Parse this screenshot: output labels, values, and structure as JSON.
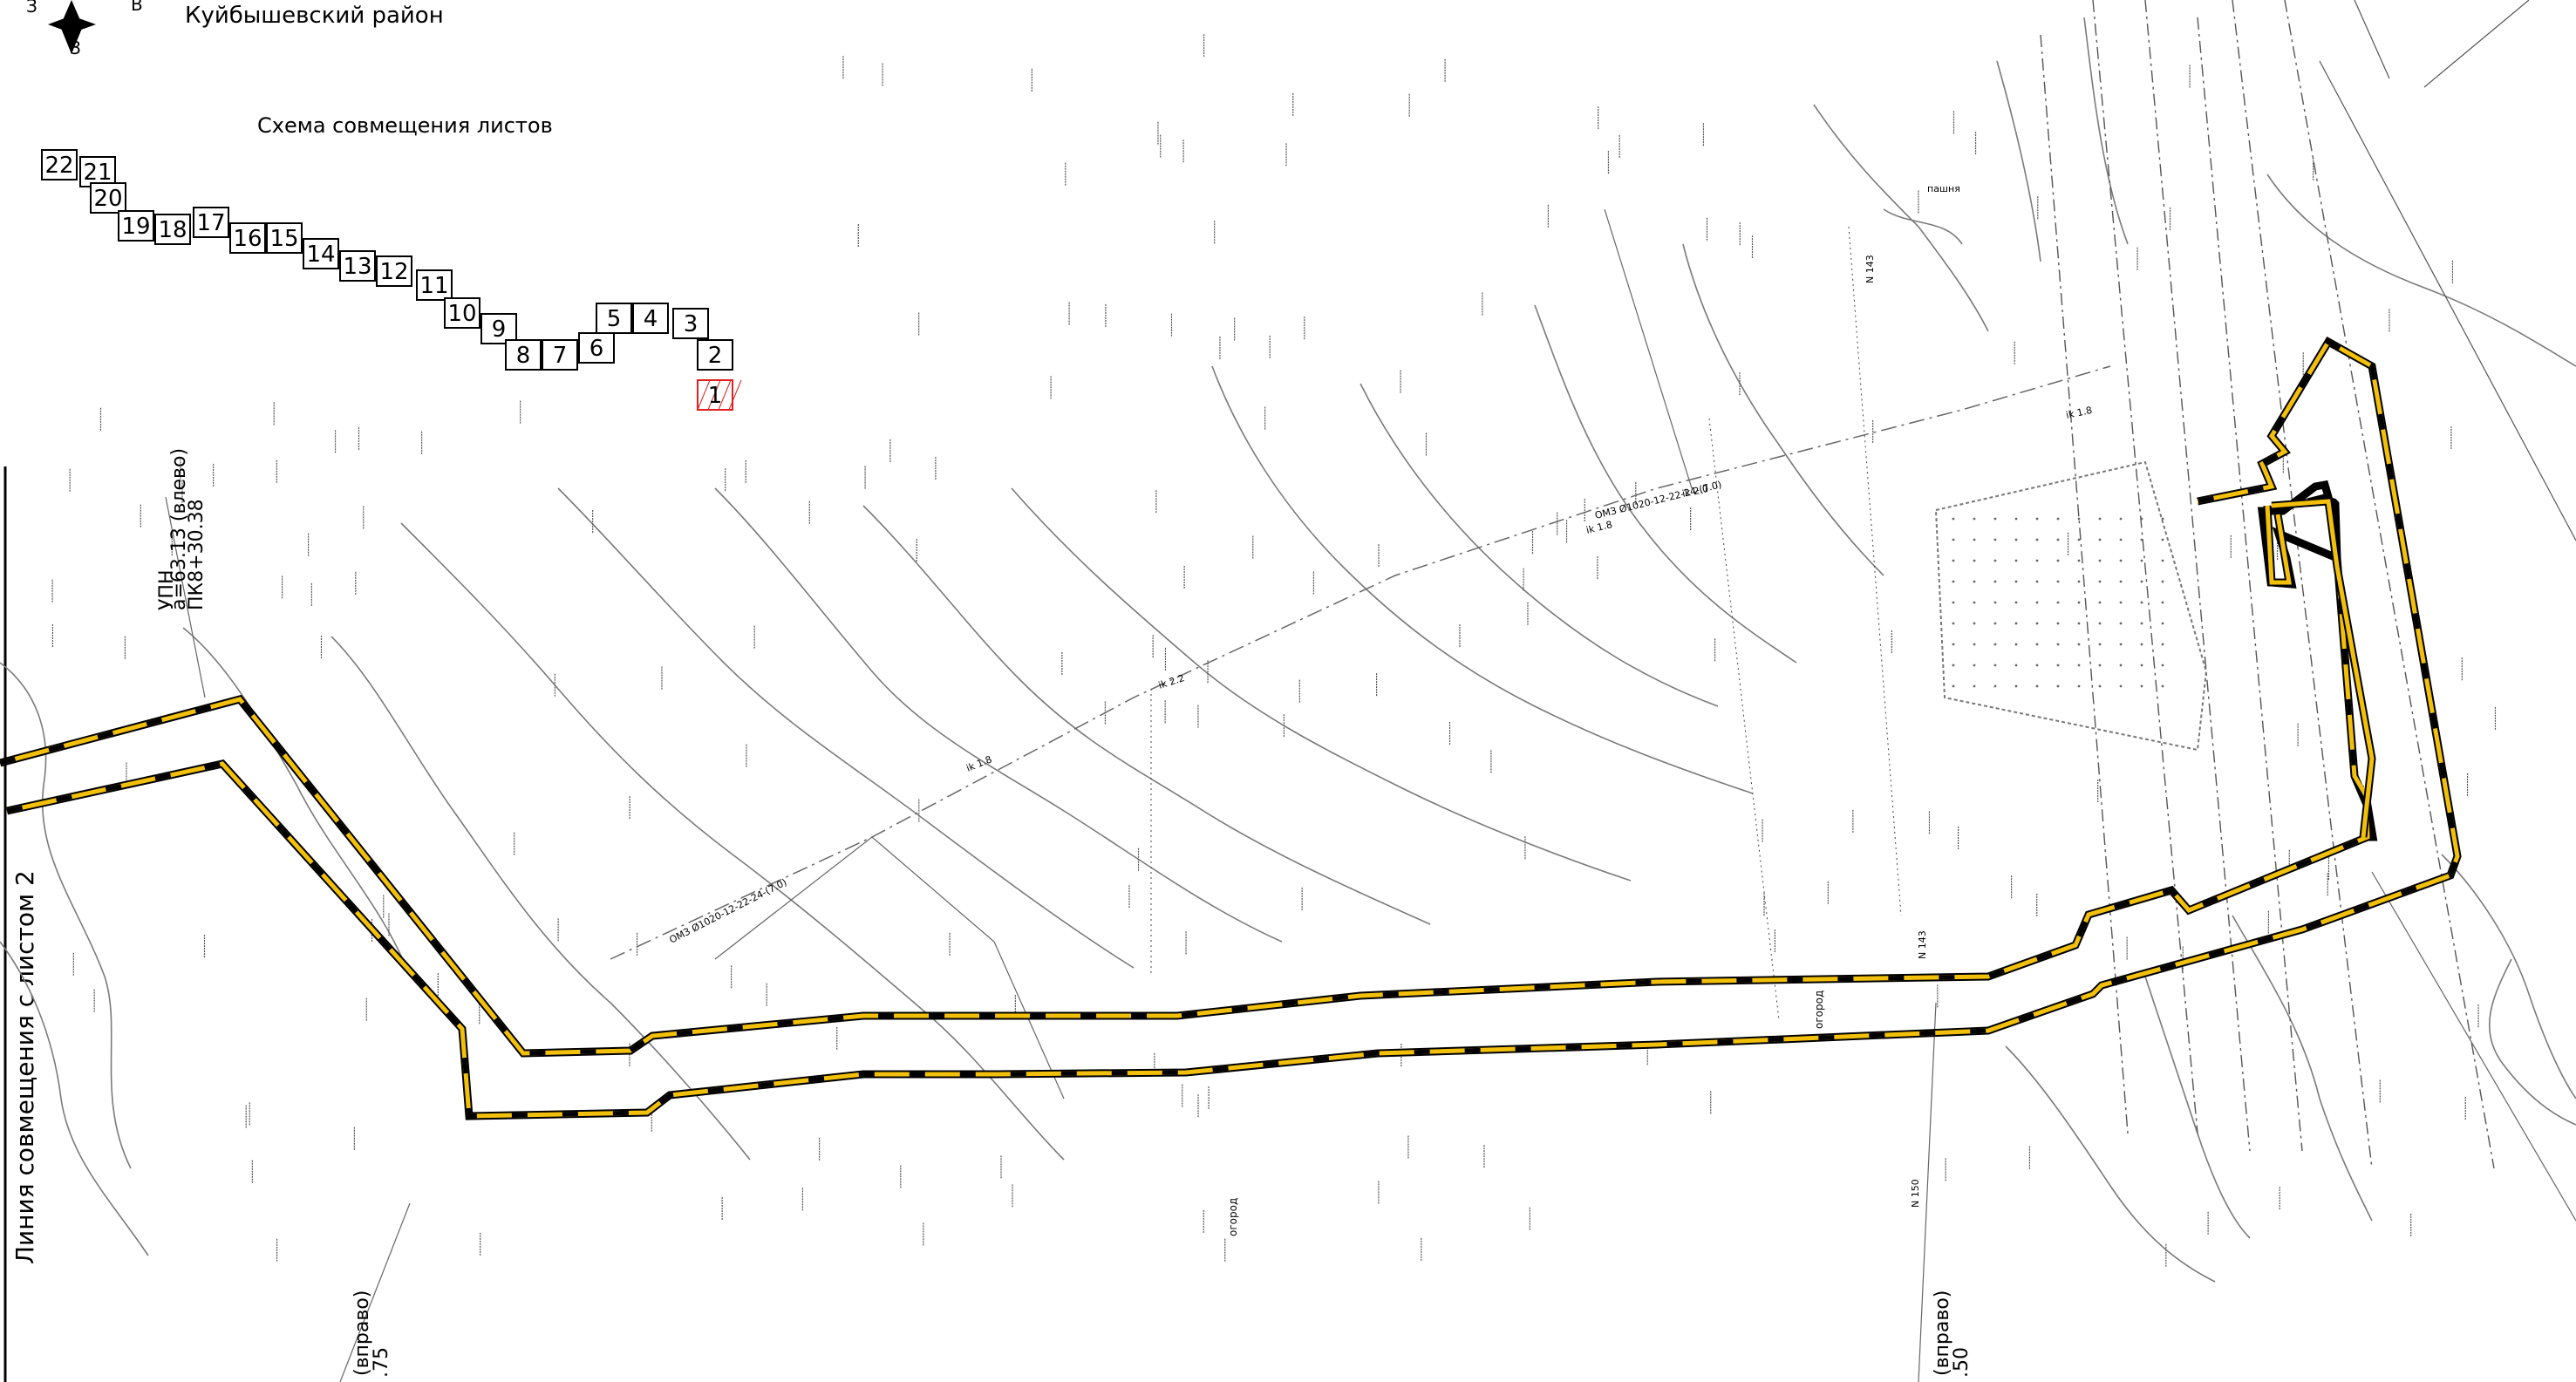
{
  "district": "Куйбышевский район",
  "compass": {
    "letter_left": "З",
    "letter_right": "В",
    "letter_bottom": "З"
  },
  "scheme_title": "Схема совмещения листов",
  "sheets": [
    "22",
    "21",
    "20",
    "19",
    "18",
    "17",
    "16",
    "15",
    "14",
    "13",
    "12",
    "11",
    "10",
    "9",
    "8",
    "7",
    "6",
    "5",
    "4",
    "3",
    "2",
    "1"
  ],
  "current_sheet": "1",
  "match_line": "Линия совмещения с листом 2",
  "upg_label": "УПН",
  "upg_coord": "a=63.13 (влево)",
  "upg_pk": "ПК8+30.38",
  "bottom_left_label": "(вправо)",
  "bottom_left_value": ".75",
  "bottom_right_label": "(вправо)",
  "bottom_right_value": ".50",
  "pipeline_label": "ОМЗ Ø1020-12-22-24-(7.0)",
  "slope_labels": [
    "ik 1.8",
    "ik 2.2",
    "ik 1.8",
    "ik 2.0",
    "ik 1.8"
  ],
  "north_marker": "N 143",
  "north_marker2": "N 150",
  "road_label": "огород",
  "area_label": "пашня",
  "colors": {
    "road_fill": "#f2c00a",
    "road_dash": "#000000",
    "contour": "#7a7a7a",
    "highlight": "#e02020",
    "dashline": "#666666"
  }
}
